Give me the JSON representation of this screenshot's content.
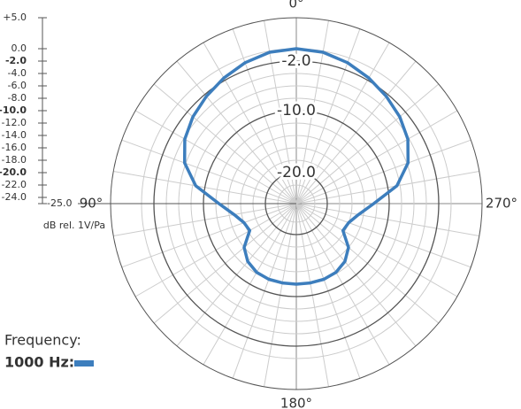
{
  "chart_data": {
    "type": "polar",
    "x": [
      0,
      10,
      20,
      30,
      40,
      50,
      60,
      70,
      80,
      90,
      100,
      110,
      120,
      130,
      140,
      150,
      160,
      170,
      180,
      190,
      200,
      210,
      220,
      230,
      240,
      250,
      260,
      270,
      280,
      290,
      300,
      310,
      320,
      330,
      340,
      350
    ],
    "series": [
      {
        "name": "1000 Hz:",
        "color": "#3d7ebd",
        "values": [
          0,
          -0.2,
          -0.8,
          -1.6,
          -2.4,
          -3.2,
          -4.2,
          -5.8,
          -8.5,
          -12.5,
          -14.8,
          -16,
          -16.3,
          -14,
          -12.8,
          -12.2,
          -12,
          -12,
          -12,
          -12,
          -12,
          -12.2,
          -12.8,
          -14,
          -16.3,
          -16,
          -14.8,
          -12.5,
          -8.5,
          -5.8,
          -4.2,
          -3.2,
          -2.4,
          -1.6,
          -0.8,
          -0.2
        ]
      }
    ],
    "legend_title": "Frequency:",
    "ylabel": "dB rel. 1V/Pa",
    "ylim": [
      -25,
      5
    ],
    "yticks": [
      {
        "value": 5,
        "label": "+5.0"
      },
      {
        "value": 0,
        "label": "0.0"
      },
      {
        "value": -2,
        "label": "-2.0"
      },
      {
        "value": -4,
        "label": "-4.0"
      },
      {
        "value": -6,
        "label": "-6.0"
      },
      {
        "value": -8,
        "label": "-8.0"
      },
      {
        "value": -10,
        "label": "-10.0"
      },
      {
        "value": -12,
        "label": "-12.0"
      },
      {
        "value": -14,
        "label": "-14.0"
      },
      {
        "value": -16,
        "label": "-16.0"
      },
      {
        "value": -18,
        "label": "-18.0"
      },
      {
        "value": -20,
        "label": "-20.0"
      },
      {
        "value": -22,
        "label": "-22.0"
      },
      {
        "value": -24,
        "label": "-24.0"
      },
      {
        "value": -25,
        "label": "-25.0"
      }
    ],
    "ring_labels": [
      {
        "value": -2,
        "label": "-2.0"
      },
      {
        "value": -10,
        "label": "-10.0"
      },
      {
        "value": -20,
        "label": "-20.0"
      }
    ],
    "angle_labels": [
      {
        "value": 0,
        "label": "0°"
      },
      {
        "value": 90,
        "label": "90°"
      },
      {
        "value": 180,
        "label": "180°"
      },
      {
        "value": 270,
        "label": "270°"
      }
    ],
    "spoke_step": 10
  }
}
